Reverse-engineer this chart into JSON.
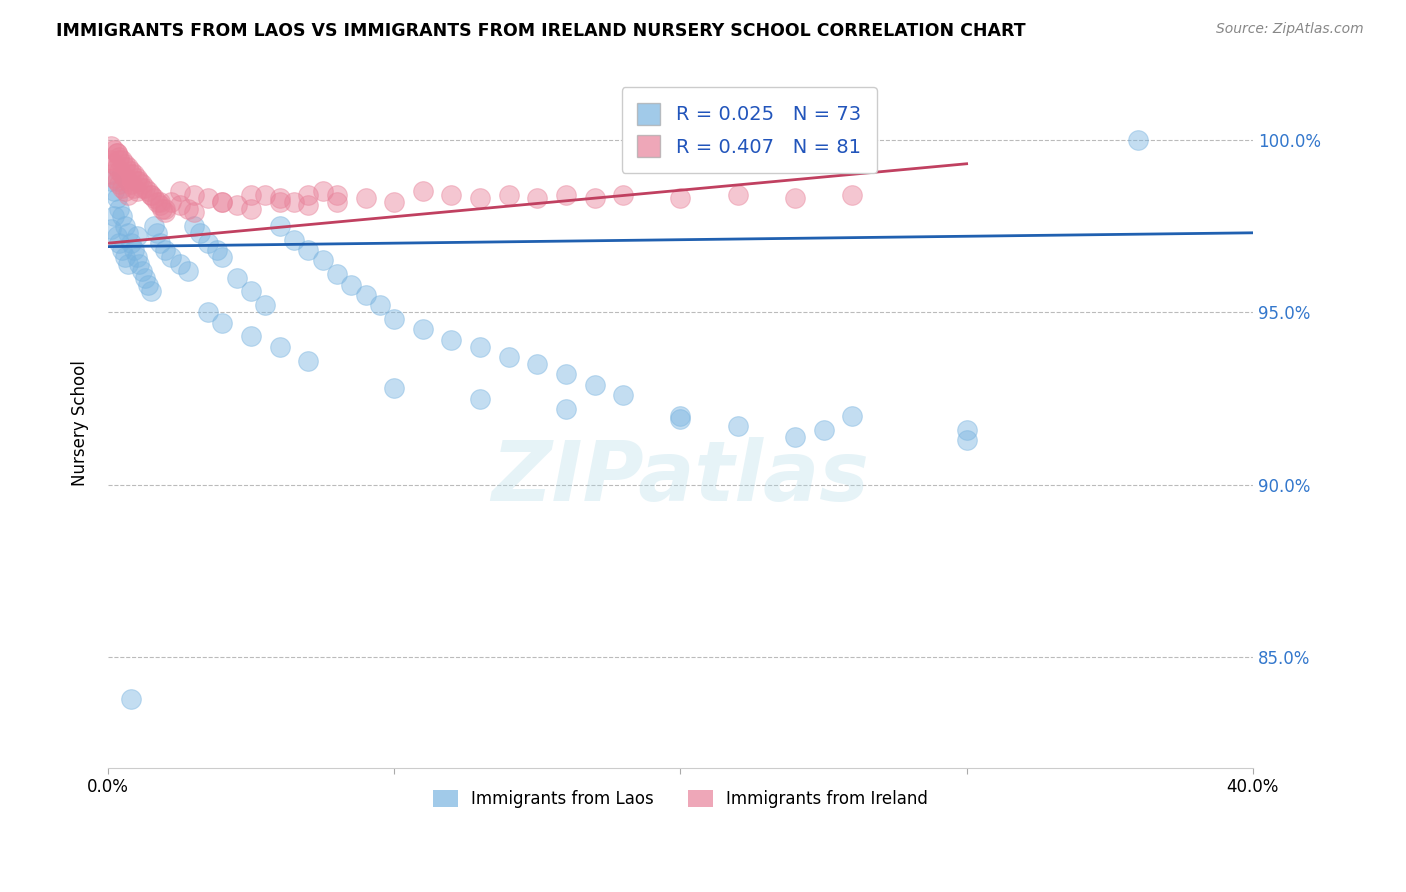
{
  "title": "IMMIGRANTS FROM LAOS VS IMMIGRANTS FROM IRELAND NURSERY SCHOOL CORRELATION CHART",
  "source": "Source: ZipAtlas.com",
  "ylabel": "Nursery School",
  "legend_label1": "Immigrants from Laos",
  "legend_label2": "Immigrants from Ireland",
  "R1": 0.025,
  "N1": 73,
  "R2": 0.407,
  "N2": 81,
  "color1": "#7ab4e0",
  "color2": "#e8829a",
  "trendline1_color": "#2060b0",
  "trendline2_color": "#c04060",
  "xlim": [
    0.0,
    0.4
  ],
  "ylim": [
    0.818,
    1.018
  ],
  "yticks": [
    0.85,
    0.9,
    0.95,
    1.0
  ],
  "ytick_labels": [
    "85.0%",
    "90.0%",
    "95.0%",
    "100.0%"
  ],
  "watermark": "ZIPatlas",
  "laos_x": [
    0.001,
    0.001,
    0.002,
    0.002,
    0.003,
    0.003,
    0.004,
    0.004,
    0.005,
    0.005,
    0.006,
    0.006,
    0.007,
    0.007,
    0.008,
    0.009,
    0.01,
    0.01,
    0.011,
    0.012,
    0.013,
    0.014,
    0.015,
    0.016,
    0.017,
    0.018,
    0.02,
    0.022,
    0.025,
    0.028,
    0.03,
    0.032,
    0.035,
    0.038,
    0.04,
    0.045,
    0.05,
    0.055,
    0.06,
    0.065,
    0.07,
    0.075,
    0.08,
    0.085,
    0.09,
    0.095,
    0.1,
    0.11,
    0.12,
    0.13,
    0.14,
    0.15,
    0.16,
    0.17,
    0.18,
    0.2,
    0.22,
    0.24,
    0.26,
    0.3,
    0.035,
    0.04,
    0.05,
    0.06,
    0.07,
    0.1,
    0.13,
    0.16,
    0.2,
    0.25,
    0.3,
    0.36,
    0.008
  ],
  "laos_y": [
    0.988,
    0.974,
    0.985,
    0.978,
    0.983,
    0.972,
    0.98,
    0.97,
    0.978,
    0.968,
    0.975,
    0.966,
    0.973,
    0.964,
    0.97,
    0.968,
    0.966,
    0.972,
    0.964,
    0.962,
    0.96,
    0.958,
    0.956,
    0.975,
    0.973,
    0.97,
    0.968,
    0.966,
    0.964,
    0.962,
    0.975,
    0.973,
    0.97,
    0.968,
    0.966,
    0.96,
    0.956,
    0.952,
    0.975,
    0.971,
    0.968,
    0.965,
    0.961,
    0.958,
    0.955,
    0.952,
    0.948,
    0.945,
    0.942,
    0.94,
    0.937,
    0.935,
    0.932,
    0.929,
    0.926,
    0.92,
    0.917,
    0.914,
    0.92,
    0.916,
    0.95,
    0.947,
    0.943,
    0.94,
    0.936,
    0.928,
    0.925,
    0.922,
    0.919,
    0.916,
    0.913,
    1.0,
    0.838
  ],
  "ireland_x": [
    0.001,
    0.001,
    0.001,
    0.002,
    0.002,
    0.002,
    0.003,
    0.003,
    0.003,
    0.004,
    0.004,
    0.004,
    0.005,
    0.005,
    0.005,
    0.006,
    0.006,
    0.006,
    0.007,
    0.007,
    0.007,
    0.008,
    0.008,
    0.009,
    0.009,
    0.01,
    0.01,
    0.011,
    0.012,
    0.013,
    0.014,
    0.015,
    0.016,
    0.017,
    0.018,
    0.019,
    0.02,
    0.022,
    0.025,
    0.028,
    0.03,
    0.035,
    0.04,
    0.045,
    0.05,
    0.055,
    0.06,
    0.065,
    0.07,
    0.075,
    0.08,
    0.09,
    0.1,
    0.11,
    0.12,
    0.13,
    0.14,
    0.15,
    0.16,
    0.17,
    0.18,
    0.2,
    0.22,
    0.24,
    0.26,
    0.003,
    0.004,
    0.006,
    0.008,
    0.01,
    0.012,
    0.015,
    0.018,
    0.02,
    0.025,
    0.03,
    0.04,
    0.05,
    0.06,
    0.07,
    0.08
  ],
  "ireland_y": [
    0.998,
    0.994,
    0.99,
    0.997,
    0.993,
    0.989,
    0.996,
    0.992,
    0.988,
    0.995,
    0.991,
    0.987,
    0.994,
    0.99,
    0.986,
    0.993,
    0.989,
    0.985,
    0.992,
    0.988,
    0.984,
    0.991,
    0.987,
    0.99,
    0.986,
    0.989,
    0.985,
    0.988,
    0.987,
    0.986,
    0.985,
    0.984,
    0.983,
    0.982,
    0.981,
    0.98,
    0.979,
    0.982,
    0.981,
    0.98,
    0.979,
    0.983,
    0.982,
    0.981,
    0.98,
    0.984,
    0.983,
    0.982,
    0.981,
    0.985,
    0.984,
    0.983,
    0.982,
    0.985,
    0.984,
    0.983,
    0.984,
    0.983,
    0.984,
    0.983,
    0.984,
    0.983,
    0.984,
    0.983,
    0.984,
    0.996,
    0.994,
    0.992,
    0.99,
    0.988,
    0.986,
    0.984,
    0.982,
    0.98,
    0.985,
    0.984,
    0.982,
    0.984,
    0.982,
    0.984,
    0.982
  ]
}
